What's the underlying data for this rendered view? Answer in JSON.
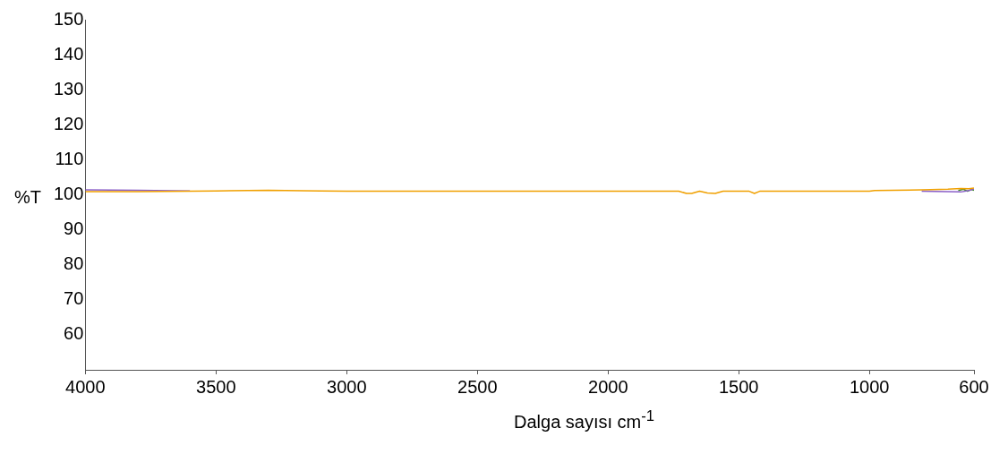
{
  "chart_data": {
    "type": "line",
    "xlabel": "Dalga sayısı cm$^{-1}$",
    "ylabel": "%T",
    "xlim": [
      4000,
      600
    ],
    "xticks": [
      4000,
      3500,
      3000,
      2500,
      2000,
      1500,
      1000,
      600
    ],
    "ylim": [
      50,
      150
    ],
    "yticks": [
      60,
      70,
      80,
      90,
      100,
      110,
      120,
      130,
      140,
      150
    ],
    "grid": false,
    "legend": false,
    "marker": "none",
    "line_style": "solid",
    "series": [
      {
        "color": "#f0a000",
        "x": [
          4000,
          3800,
          3500,
          3300,
          3100,
          3000,
          2500,
          2000,
          1730,
          1700,
          1680,
          1650,
          1620,
          1590,
          1560,
          1460,
          1440,
          1420,
          1000,
          980,
          800,
          700,
          650,
          620,
          600
        ],
        "values": [
          100.9,
          100.9,
          101.1,
          101.3,
          101.1,
          101.0,
          101.0,
          101.0,
          101.0,
          100.4,
          100.4,
          101.0,
          100.5,
          100.4,
          101.0,
          101.0,
          100.4,
          101.0,
          101.0,
          101.2,
          101.4,
          101.6,
          101.8,
          101.7,
          101.9
        ]
      },
      {
        "color": "#8a5fc8",
        "x": [
          4000,
          3800,
          3600,
          null,
          800,
          700,
          650,
          620,
          600
        ],
        "values": [
          101.4,
          101.3,
          101.1,
          null,
          101.0,
          100.9,
          100.8,
          101.2,
          101.7
        ]
      },
      {
        "color": "#3a8a2a",
        "x": [
          660,
          640,
          625,
          610,
          600
        ],
        "values": [
          101.2,
          101.6,
          101.0,
          101.5,
          101.3
        ]
      }
    ]
  }
}
